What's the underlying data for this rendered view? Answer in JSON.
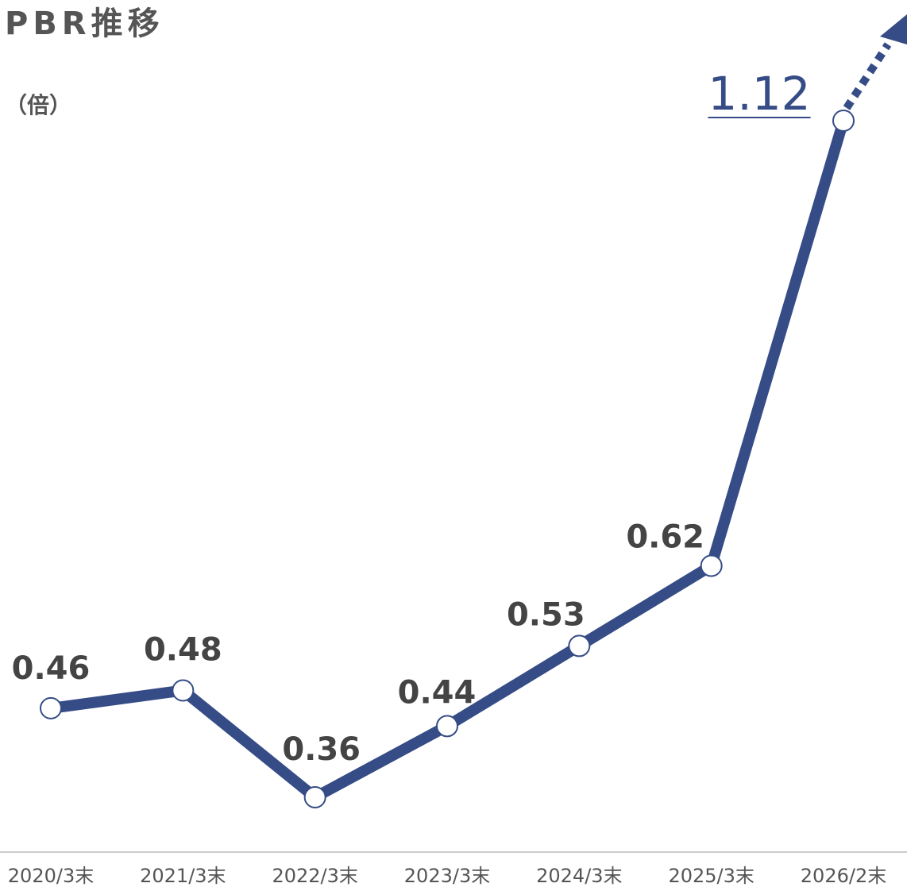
{
  "chart_data": {
    "type": "line",
    "title": "PBR推移",
    "y_label": "（倍）",
    "categories": [
      "2020/3末",
      "2021/3末",
      "2022/3末",
      "2023/3末",
      "2024/3末",
      "2025/3末",
      "2026/2末"
    ],
    "values": [
      0.46,
      0.48,
      0.36,
      0.44,
      0.53,
      0.62,
      1.12
    ],
    "color": "#364c86"
  }
}
